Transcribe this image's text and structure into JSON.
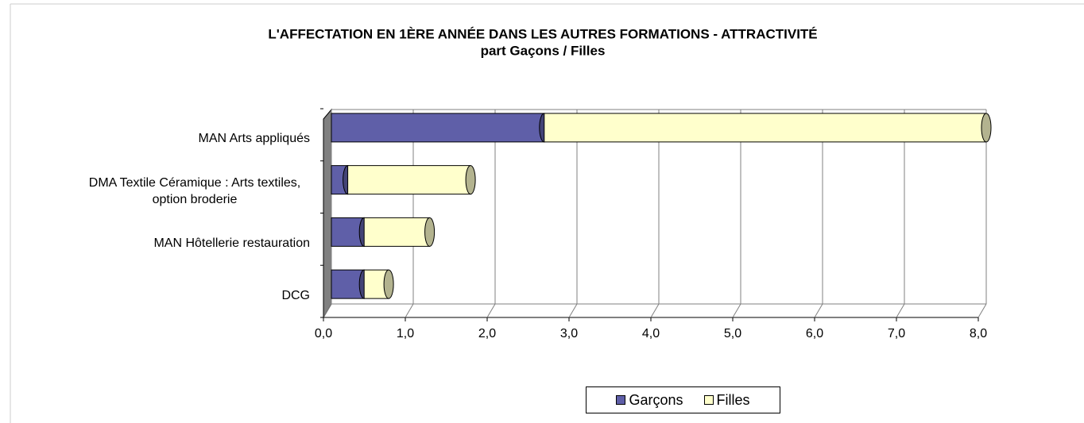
{
  "chart_data": {
    "type": "bar3d_stacked_horizontal",
    "title": "L'AFFECTATION EN 1ÈRE ANNÉE DANS LES AUTRES FORMATIONS - ATTRACTIVITÉ",
    "subtitle": "part Gaçons / Filles",
    "categories": [
      "MAN Arts appliqués",
      "DMA Textile Céramique : Arts textiles, option broderie",
      "MAN Hôtellerie restauration",
      "DCG"
    ],
    "series": [
      {
        "name": "Garçons",
        "color": "#5f5fa8",
        "values": [
          2.6,
          0.2,
          0.4,
          0.4
        ]
      },
      {
        "name": "Filles",
        "color": "#ffffcc",
        "values": [
          5.4,
          1.5,
          0.8,
          0.3
        ]
      }
    ],
    "xlim": [
      0,
      8
    ],
    "xticks": [
      {
        "value": 0,
        "label": "0,0"
      },
      {
        "value": 1,
        "label": "1,0"
      },
      {
        "value": 2,
        "label": "2,0"
      },
      {
        "value": 3,
        "label": "3,0"
      },
      {
        "value": 4,
        "label": "4,0"
      },
      {
        "value": 5,
        "label": "5,0"
      },
      {
        "value": 6,
        "label": "6,0"
      },
      {
        "value": 7,
        "label": "7,0"
      },
      {
        "value": 8,
        "label": "8,0"
      }
    ],
    "grid": true
  }
}
